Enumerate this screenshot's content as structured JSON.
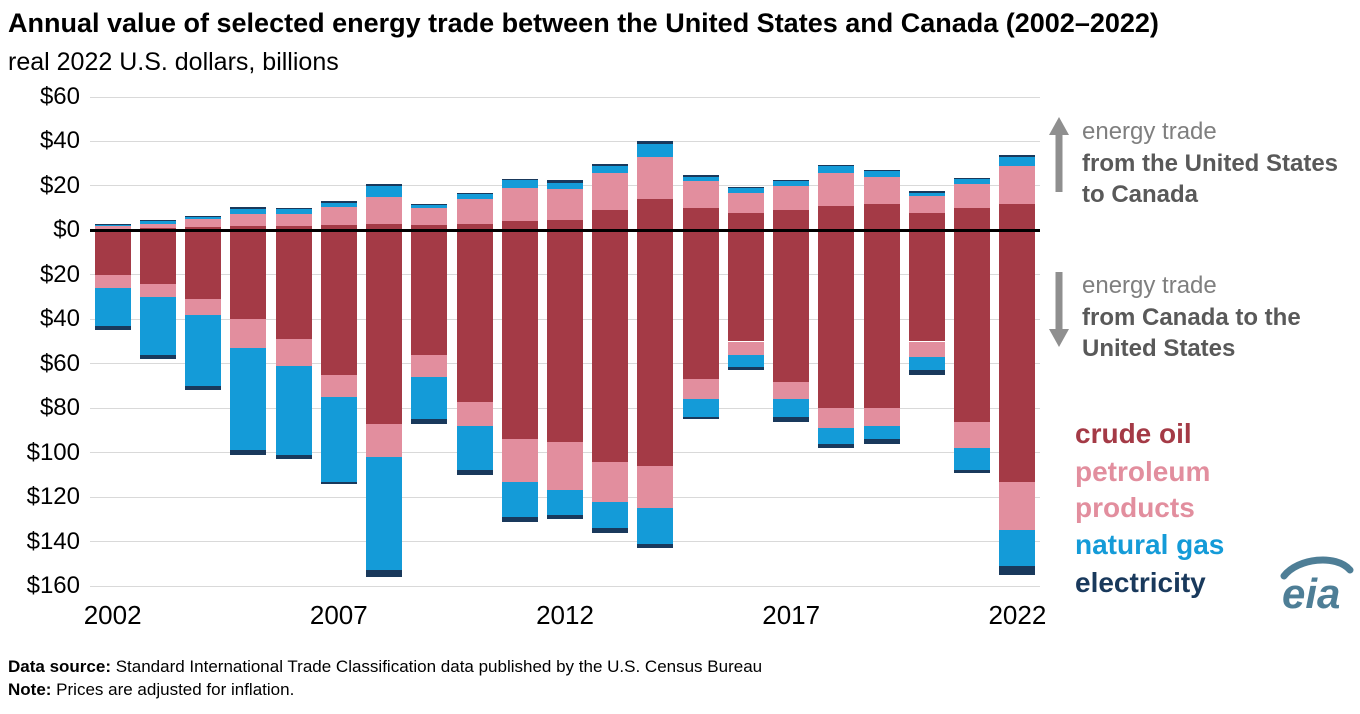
{
  "title": "Annual value of selected energy trade between the United States and Canada (2002–2022)",
  "subtitle": "real 2022 U.S. dollars, billions",
  "annotations": {
    "up": {
      "line1": "energy trade",
      "line2": "from the United States to Canada"
    },
    "down": {
      "line1": "energy trade",
      "line2": "from Canada to the United States"
    }
  },
  "legend": [
    {
      "label": "crude oil",
      "color": "#A43A46"
    },
    {
      "label": "petroleum products",
      "color": "#E28E9E"
    },
    {
      "label": "natural gas",
      "color": "#149BD8"
    },
    {
      "label": "electricity",
      "color": "#19395C"
    }
  ],
  "logo": {
    "text": "eia",
    "color": "#4E7E96"
  },
  "footer": {
    "source_label": "Data source:",
    "source_text": " Standard International Trade Classification data published by the U.S. Census Bureau",
    "note_label": "Note:",
    "note_text": " Prices are adjusted for inflation."
  },
  "chart_data": {
    "type": "bar",
    "stacked": true,
    "diverging": true,
    "title": "Annual value of selected energy trade between the United States and Canada (2002–2022)",
    "ylabel": "real 2022 U.S. dollars, billions",
    "ylim": [
      -160,
      60
    ],
    "grid": true,
    "years": [
      2002,
      2003,
      2004,
      2005,
      2006,
      2007,
      2008,
      2009,
      2010,
      2011,
      2012,
      2013,
      2014,
      2015,
      2016,
      2017,
      2018,
      2019,
      2020,
      2021,
      2022
    ],
    "x_ticks": [
      {
        "index": 0,
        "label": "2002"
      },
      {
        "index": 5,
        "label": "2007"
      },
      {
        "index": 10,
        "label": "2012"
      },
      {
        "index": 15,
        "label": "2017"
      },
      {
        "index": 20,
        "label": "2022"
      }
    ],
    "y_tick_values": [
      60,
      40,
      20,
      0,
      -20,
      -40,
      -60,
      -80,
      -100,
      -120,
      -140,
      -160
    ],
    "y_tick_labels": [
      "$60",
      "$40",
      "$20",
      "$0",
      "$20",
      "$40",
      "$60",
      "$80",
      "$100",
      "$120",
      "$140",
      "$160"
    ],
    "stack_order": [
      "crude_oil",
      "petroleum_products",
      "natural_gas",
      "electricity"
    ],
    "colors": {
      "crude_oil": "#A43A46",
      "petroleum_products": "#E28E9E",
      "natural_gas": "#149BD8",
      "electricity": "#19395C"
    },
    "us_to_canada": {
      "crude_oil": [
        0.5,
        1.0,
        1.5,
        2.0,
        2.0,
        2.5,
        3.0,
        2.5,
        3.0,
        4.0,
        4.5,
        9.0,
        14.0,
        10.0,
        8.0,
        9.0,
        11.0,
        12.0,
        8.0,
        10.0,
        12.0
      ],
      "petroleum_products": [
        1.5,
        2.0,
        3.5,
        5.5,
        5.5,
        8.0,
        12.0,
        7.5,
        11.0,
        15.0,
        14.0,
        17.0,
        19.0,
        12.0,
        9.0,
        11.0,
        15.0,
        12.0,
        7.5,
        11.0,
        17.0
      ],
      "natural_gas": [
        0.5,
        1.0,
        1.0,
        2.0,
        2.0,
        2.0,
        5.0,
        1.5,
        2.5,
        3.5,
        3.0,
        3.0,
        6.0,
        2.0,
        2.0,
        2.0,
        3.0,
        2.5,
        1.5,
        2.0,
        4.0
      ],
      "electricity": [
        0.5,
        0.5,
        0.5,
        1.0,
        0.5,
        0.5,
        1.0,
        0.5,
        0.5,
        0.5,
        1.0,
        1.0,
        1.0,
        1.0,
        0.5,
        0.5,
        0.5,
        0.5,
        0.5,
        0.5,
        1.0
      ]
    },
    "canada_to_us": {
      "crude_oil": [
        20,
        24,
        31,
        40,
        49,
        65,
        87,
        56,
        77,
        94,
        95,
        104,
        106,
        67,
        50,
        68,
        80,
        80,
        50,
        86,
        113
      ],
      "petroleum_products": [
        6,
        6,
        7,
        13,
        12,
        10,
        15,
        10,
        11,
        19,
        22,
        18,
        19,
        9,
        6,
        8,
        9,
        8,
        7,
        12,
        22
      ],
      "natural_gas": [
        17,
        26,
        32,
        46,
        40,
        38,
        51,
        19,
        20,
        16,
        11,
        12,
        16,
        8,
        5.5,
        8,
        7,
        6,
        6,
        10,
        16
      ],
      "electricity": [
        2,
        2,
        2,
        2,
        2,
        1,
        3,
        2,
        2,
        2,
        2,
        2,
        2,
        1,
        1.5,
        2,
        2,
        2,
        2,
        1,
        4
      ]
    }
  }
}
